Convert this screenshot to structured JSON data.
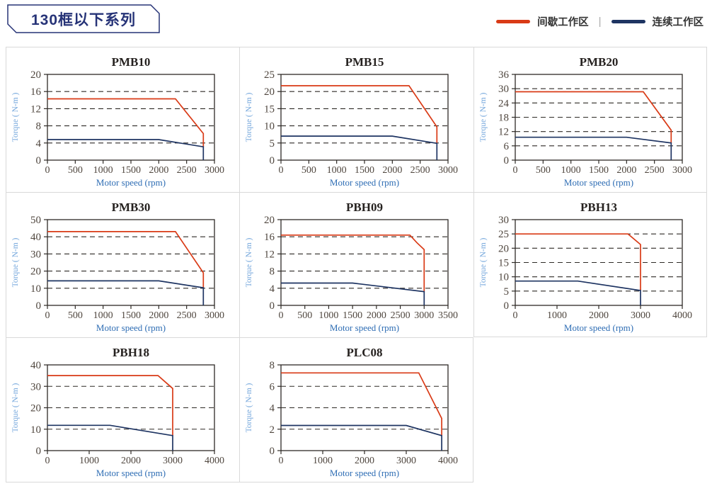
{
  "header": {
    "title": "130框以下系列",
    "legend": [
      {
        "key": "intermittent",
        "label": "间歇工作区"
      },
      {
        "key": "continuous",
        "label": "连续工作区"
      }
    ],
    "legend_separator": "|"
  },
  "chart_defaults": {
    "xlabel": "Motor speed (rpm)",
    "ylabel": "Torque ( N-m )",
    "grid": "dashed-horizontal",
    "legend_position": "top-right-of-page",
    "colors": {
      "intermittent": "#d93a16",
      "continuous": "#1e3462",
      "axis": "#2e2a26",
      "tick_label": "#4f463e",
      "ylabel": "#74a7dc",
      "xlabel": "#2e6db4",
      "title": "#262220",
      "cell_border": "#d9d9d9",
      "header_text": "#263377"
    }
  },
  "chart_data": [
    {
      "type": "line",
      "id": "pmb10",
      "title": "PMB10",
      "xlim": [
        0,
        3000
      ],
      "xstep": 500,
      "ylim": [
        0,
        20
      ],
      "ystep": 4,
      "series": [
        {
          "name": "间歇工作区",
          "key": "intermittent",
          "points": [
            [
              0,
              14.3
            ],
            [
              2300,
              14.3
            ],
            [
              2800,
              6.2
            ],
            [
              2800,
              3.1
            ]
          ]
        },
        {
          "name": "连续工作区",
          "key": "continuous",
          "points": [
            [
              0,
              4.8
            ],
            [
              2000,
              4.8
            ],
            [
              2800,
              3.1
            ],
            [
              2800,
              0
            ]
          ]
        }
      ]
    },
    {
      "type": "line",
      "id": "pmb15",
      "title": "PMB15",
      "xlim": [
        0,
        3000
      ],
      "xstep": 500,
      "ylim": [
        0,
        25
      ],
      "ystep": 5,
      "series": [
        {
          "name": "间歇工作区",
          "key": "intermittent",
          "points": [
            [
              0,
              21.7
            ],
            [
              2300,
              21.7
            ],
            [
              2800,
              9.7
            ],
            [
              2800,
              4.9
            ]
          ]
        },
        {
          "name": "连续工作区",
          "key": "continuous",
          "points": [
            [
              0,
              7
            ],
            [
              2000,
              7
            ],
            [
              2800,
              4.9
            ],
            [
              2800,
              0
            ]
          ]
        }
      ]
    },
    {
      "type": "line",
      "id": "pmb20",
      "title": "PMB20",
      "xlim": [
        0,
        3000
      ],
      "xstep": 500,
      "ylim": [
        0,
        36
      ],
      "ystep": 6,
      "series": [
        {
          "name": "间歇工作区",
          "key": "intermittent",
          "points": [
            [
              0,
              28.7
            ],
            [
              2300,
              28.7
            ],
            [
              2800,
              12.6
            ],
            [
              2800,
              7.2
            ]
          ]
        },
        {
          "name": "连续工作区",
          "key": "continuous",
          "points": [
            [
              0,
              9.6
            ],
            [
              2000,
              9.6
            ],
            [
              2800,
              7.2
            ],
            [
              2800,
              0
            ]
          ]
        }
      ]
    },
    {
      "type": "line",
      "id": "pmb30",
      "title": "PMB30",
      "xlim": [
        0,
        3000
      ],
      "xstep": 500,
      "ylim": [
        0,
        50
      ],
      "ystep": 10,
      "series": [
        {
          "name": "间歇工作区",
          "key": "intermittent",
          "points": [
            [
              0,
              43
            ],
            [
              2300,
              43
            ],
            [
              2800,
              19
            ],
            [
              2800,
              10.3
            ]
          ]
        },
        {
          "name": "连续工作区",
          "key": "continuous",
          "points": [
            [
              0,
              14.3
            ],
            [
              2000,
              14.3
            ],
            [
              2800,
              10.3
            ],
            [
              2800,
              0
            ]
          ]
        }
      ]
    },
    {
      "type": "line",
      "id": "pbh09",
      "title": "PBH09",
      "xlim": [
        0,
        3500
      ],
      "xstep": 500,
      "ylim": [
        0,
        20
      ],
      "ystep": 4,
      "series": [
        {
          "name": "间歇工作区",
          "key": "intermittent",
          "points": [
            [
              0,
              16.4
            ],
            [
              2700,
              16.4
            ],
            [
              2850,
              14.6
            ],
            [
              3000,
              13
            ],
            [
              3000,
              3.2
            ]
          ]
        },
        {
          "name": "连续工作区",
          "key": "continuous",
          "points": [
            [
              0,
              5.2
            ],
            [
              1500,
              5.2
            ],
            [
              3000,
              3.2
            ],
            [
              3000,
              0
            ]
          ]
        }
      ]
    },
    {
      "type": "line",
      "id": "pbh13",
      "title": "PBH13",
      "xlim": [
        0,
        4000
      ],
      "xstep": 1000,
      "ylim": [
        0,
        30
      ],
      "ystep": 5,
      "series": [
        {
          "name": "间歇工作区",
          "key": "intermittent",
          "points": [
            [
              0,
              25
            ],
            [
              2700,
              25
            ],
            [
              3000,
              21.3
            ],
            [
              3000,
              5.2
            ]
          ]
        },
        {
          "name": "连续工作区",
          "key": "continuous",
          "points": [
            [
              0,
              8.5
            ],
            [
              1500,
              8.5
            ],
            [
              3000,
              5.2
            ],
            [
              3000,
              0
            ]
          ]
        }
      ]
    },
    {
      "type": "line",
      "id": "pbh18",
      "title": "PBH18",
      "xlim": [
        0,
        4000
      ],
      "xstep": 1000,
      "ylim": [
        0,
        40
      ],
      "ystep": 10,
      "series": [
        {
          "name": "间歇工作区",
          "key": "intermittent",
          "points": [
            [
              0,
              35
            ],
            [
              2650,
              35
            ],
            [
              3000,
              29
            ],
            [
              3000,
              7
            ]
          ]
        },
        {
          "name": "连续工作区",
          "key": "continuous",
          "points": [
            [
              0,
              11.8
            ],
            [
              1500,
              11.8
            ],
            [
              3000,
              7
            ],
            [
              3000,
              0
            ]
          ]
        }
      ]
    },
    {
      "type": "line",
      "id": "plc08",
      "title": "PLC08",
      "xlim": [
        0,
        4000
      ],
      "xstep": 1000,
      "ylim": [
        0,
        8
      ],
      "ystep": 2,
      "series": [
        {
          "name": "间歇工作区",
          "key": "intermittent",
          "points": [
            [
              0,
              7.25
            ],
            [
              3300,
              7.25
            ],
            [
              3850,
              3
            ],
            [
              3850,
              1.4
            ]
          ]
        },
        {
          "name": "连续工作区",
          "key": "continuous",
          "points": [
            [
              0,
              2.35
            ],
            [
              3000,
              2.35
            ],
            [
              3850,
              1.4
            ],
            [
              3850,
              0
            ]
          ]
        }
      ]
    }
  ]
}
